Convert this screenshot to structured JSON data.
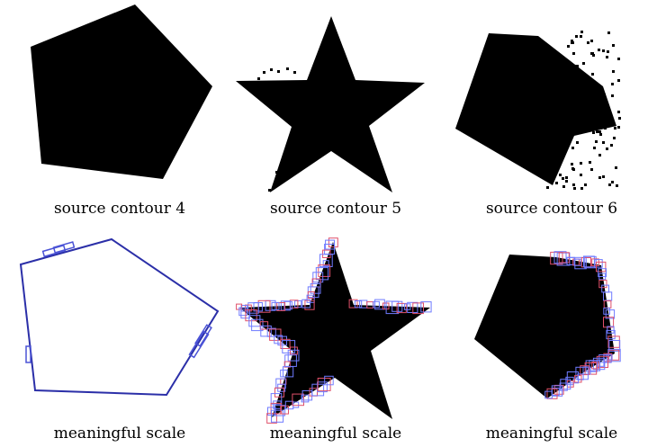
{
  "figure": {
    "panels": [
      {
        "caption": "source contour 4",
        "shape": "pentagon",
        "kind": "source"
      },
      {
        "caption": "source contour 5",
        "shape": "star",
        "kind": "source"
      },
      {
        "caption": "source contour 6",
        "shape": "noisy-pentagon",
        "kind": "source"
      },
      {
        "caption": "meaningful scale",
        "shape": "pentagon-outline",
        "kind": "scale"
      },
      {
        "caption": "meaningful scale",
        "shape": "star-boxes",
        "kind": "scale"
      },
      {
        "caption": "meaningful scale",
        "shape": "pentagon-boxes",
        "kind": "scale"
      }
    ],
    "colors": {
      "fill": "#000000",
      "outline": "#2b2fa8",
      "box_blue": "#6f7bff",
      "box_red": "#e0506a"
    }
  }
}
